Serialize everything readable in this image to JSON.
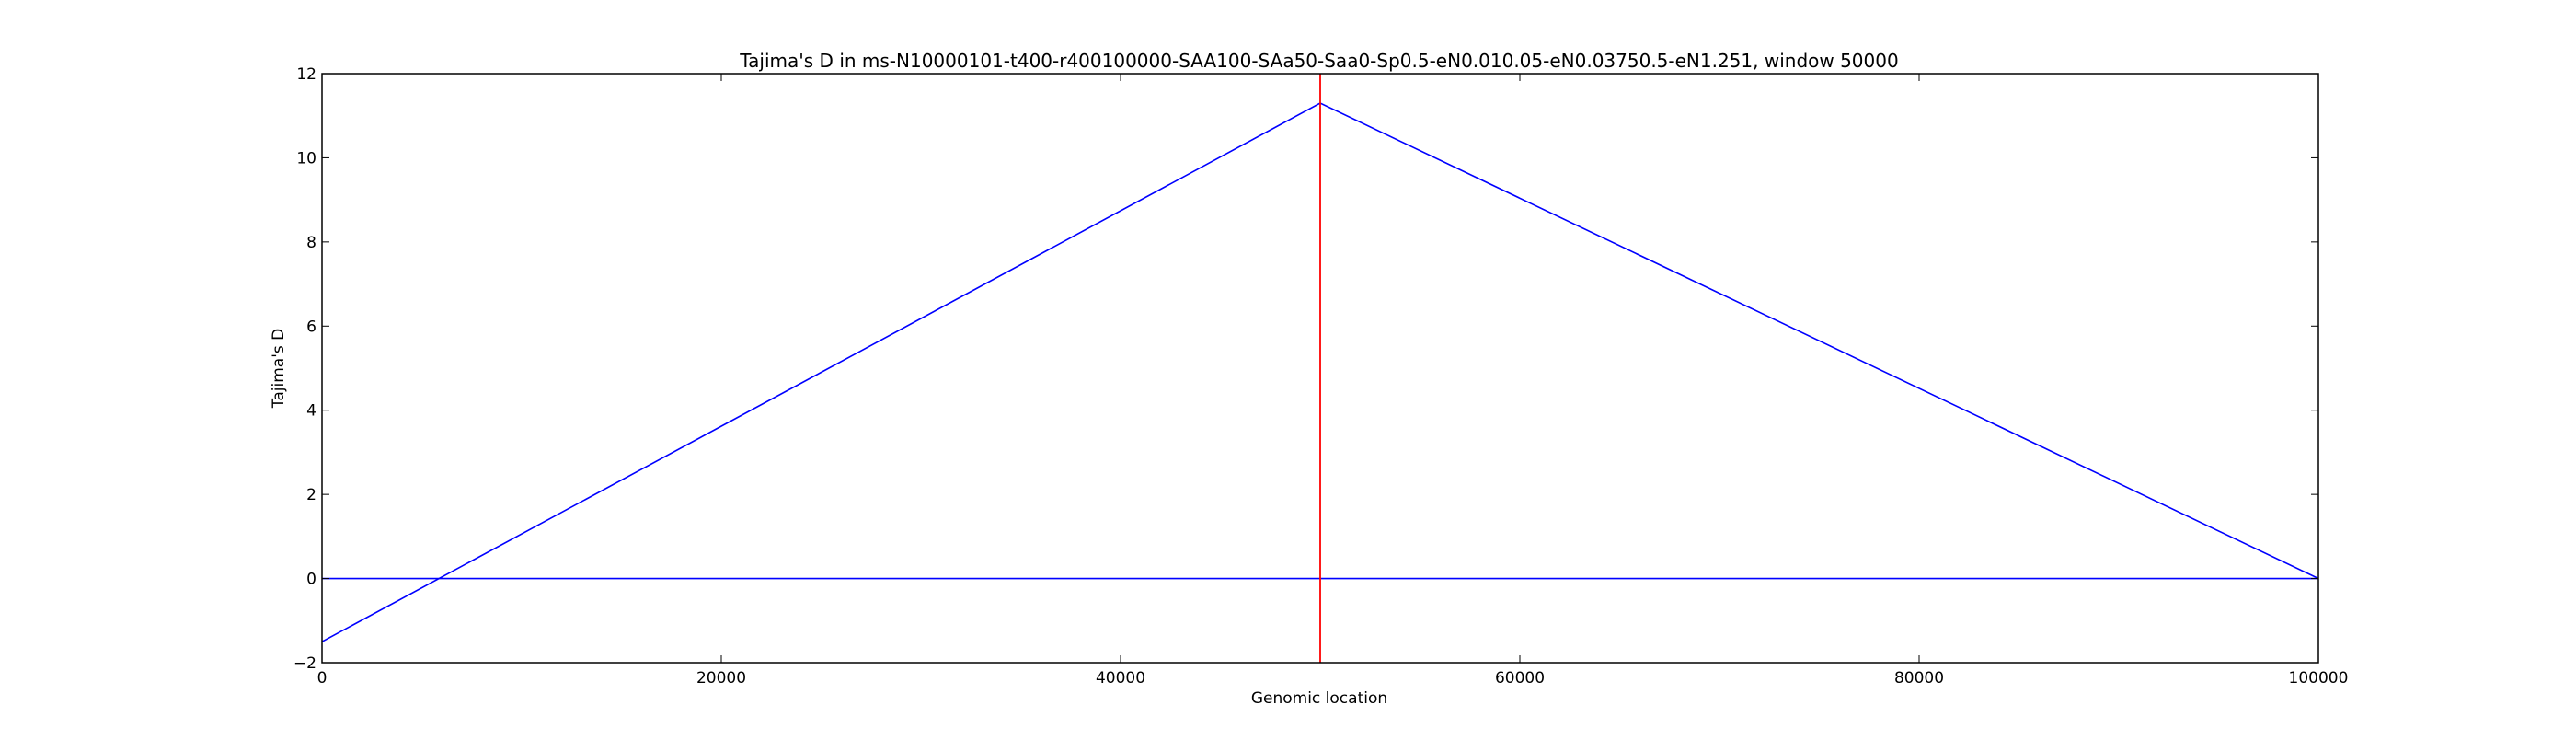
{
  "chart_data": {
    "type": "line",
    "title": "Tajima's D in ms-N10000101-t400-r400100000-SAA100-SAa50-Saa0-Sp0.5-eN0.010.05-eN0.03750.5-eN1.251, window 50000",
    "xlabel": "Genomic location",
    "ylabel": "Tajima's D",
    "xlim": [
      0,
      100000
    ],
    "ylim": [
      -2,
      12
    ],
    "xticks": [
      0,
      20000,
      40000,
      60000,
      80000,
      100000
    ],
    "yticks": [
      -2,
      0,
      2,
      4,
      6,
      8,
      10,
      12
    ],
    "grid": false,
    "series": [
      {
        "x": [
          0,
          50000,
          100000
        ],
        "y": [
          -1.5,
          11.3,
          0.0
        ],
        "color": "#0000ff"
      }
    ],
    "hlines": [
      {
        "y": 0,
        "color": "#0000ff"
      }
    ],
    "vlines": [
      {
        "x": 50000,
        "color": "#ff0000"
      }
    ]
  }
}
